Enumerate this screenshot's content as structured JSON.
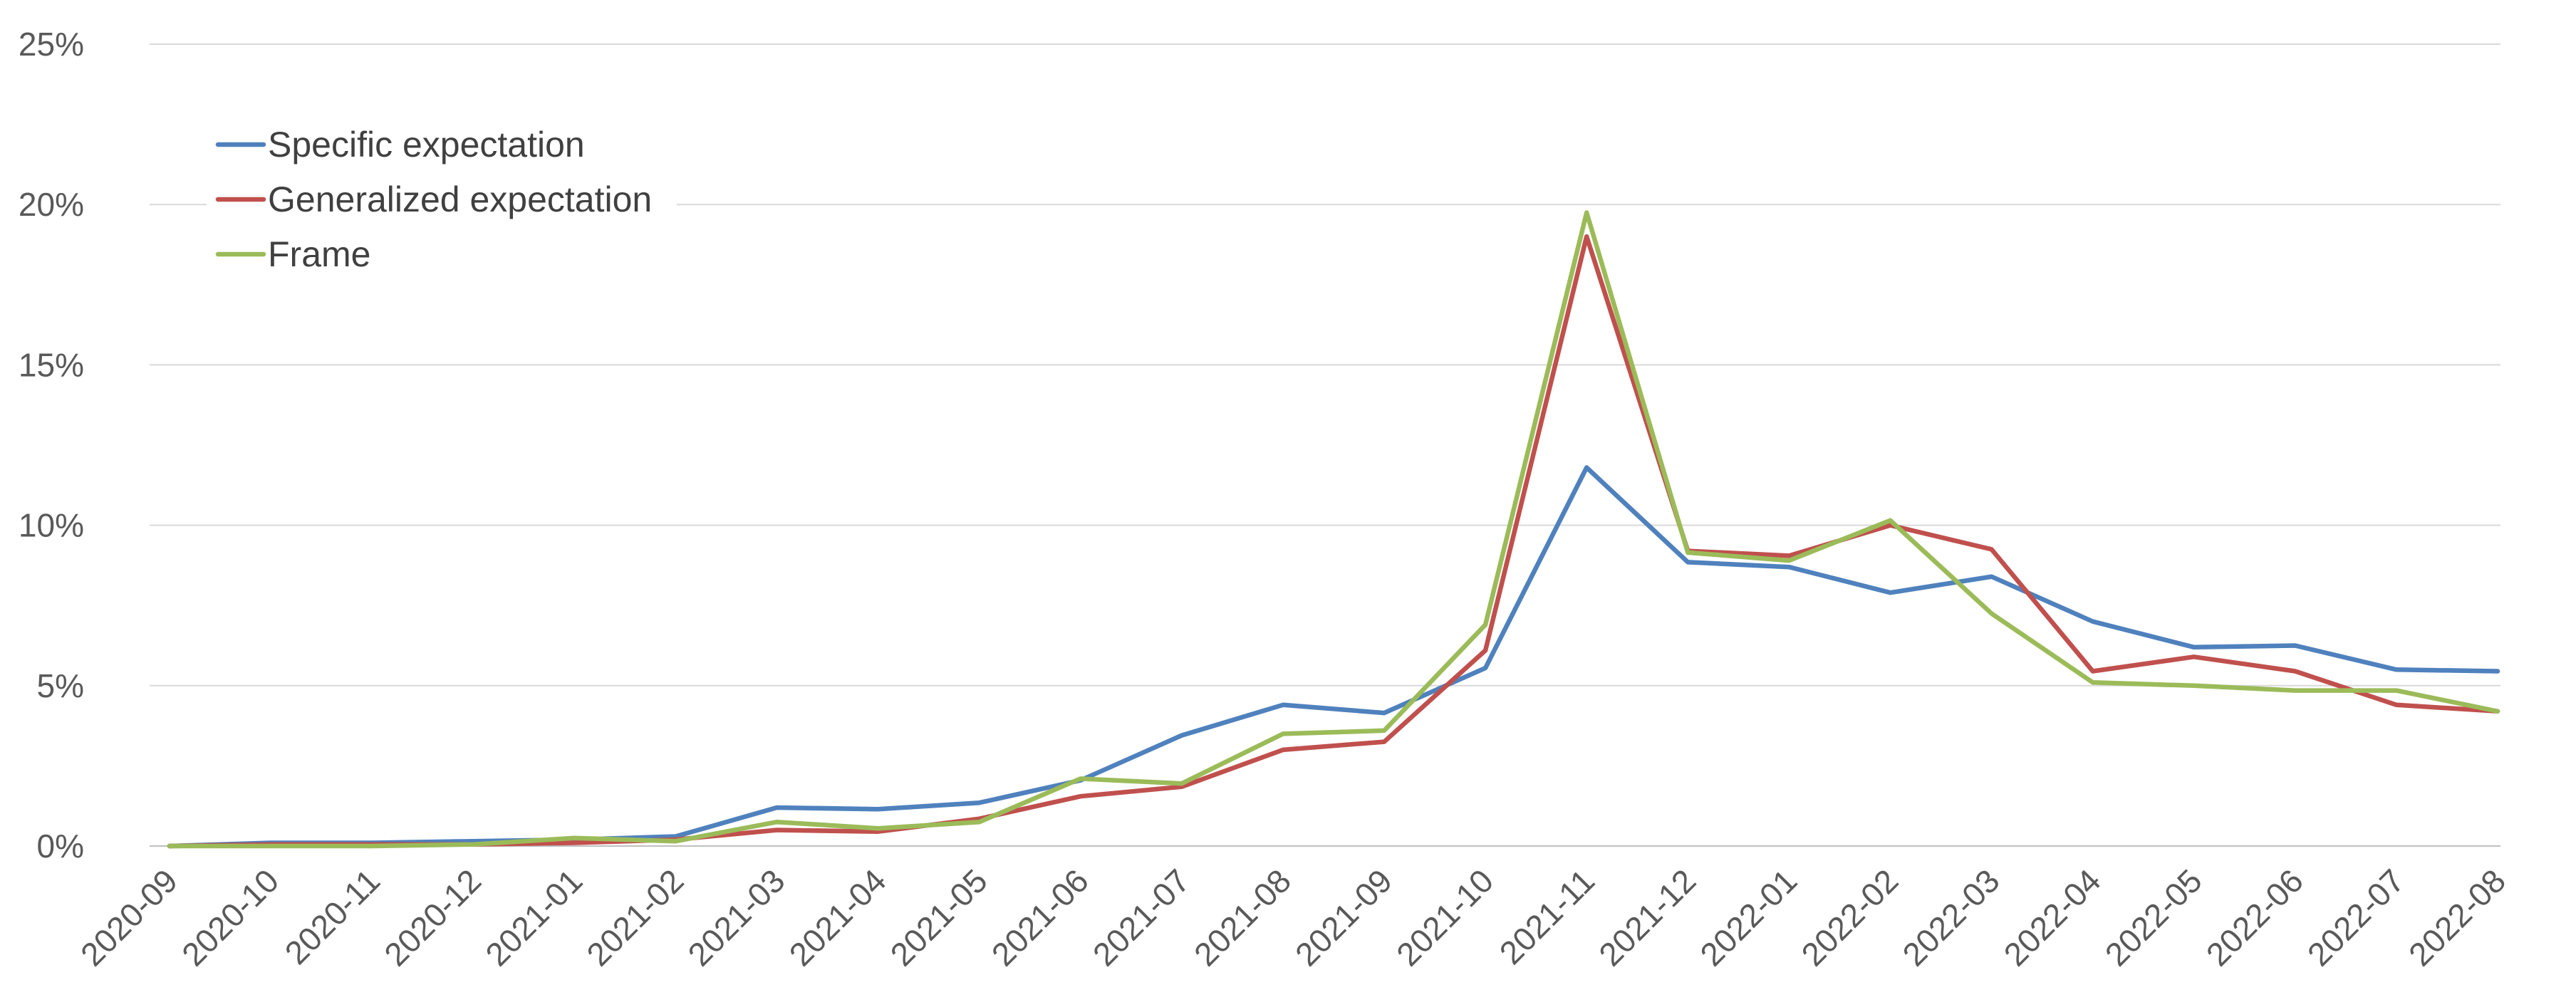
{
  "chart_data": {
    "type": "line",
    "title": "",
    "xlabel": "",
    "ylabel": "",
    "categories": [
      "2020-09",
      "2020-10",
      "2020-11",
      "2020-12",
      "2021-01",
      "2021-02",
      "2021-03",
      "2021-04",
      "2021-05",
      "2021-06",
      "2021-07",
      "2021-08",
      "2021-09",
      "2021-10",
      "2021-11",
      "2021-12",
      "2022-01",
      "2022-02",
      "2022-03",
      "2022-04",
      "2022-05",
      "2022-06",
      "2022-07",
      "2022-08"
    ],
    "yticks": [
      "0%",
      "5%",
      "10%",
      "15%",
      "20%",
      "25%"
    ],
    "ylim": [
      0,
      25
    ],
    "grid": true,
    "legend_position": "top-left",
    "series": [
      {
        "name": "Specific expectation",
        "color": "#4f81bd",
        "values": [
          0.0,
          0.1,
          0.1,
          0.15,
          0.2,
          0.3,
          1.2,
          1.15,
          1.35,
          2.05,
          3.45,
          4.4,
          4.15,
          5.55,
          11.8,
          8.85,
          8.7,
          7.9,
          8.4,
          7.0,
          6.2,
          6.25,
          5.5,
          5.45
        ]
      },
      {
        "name": "Generalized expectation",
        "color": "#c0504d",
        "values": [
          0.0,
          0.05,
          0.05,
          0.05,
          0.1,
          0.2,
          0.5,
          0.45,
          0.85,
          1.55,
          1.85,
          3.0,
          3.25,
          6.1,
          19.0,
          9.2,
          9.05,
          10.0,
          9.25,
          5.45,
          5.9,
          5.45,
          4.4,
          4.2
        ]
      },
      {
        "name": "Frame",
        "color": "#9bbb59",
        "values": [
          0.0,
          0.0,
          0.0,
          0.05,
          0.25,
          0.15,
          0.75,
          0.55,
          0.75,
          2.1,
          1.95,
          3.5,
          3.6,
          6.9,
          19.75,
          9.15,
          8.9,
          10.15,
          7.25,
          5.1,
          5.0,
          4.85,
          4.85,
          4.2
        ]
      }
    ]
  }
}
